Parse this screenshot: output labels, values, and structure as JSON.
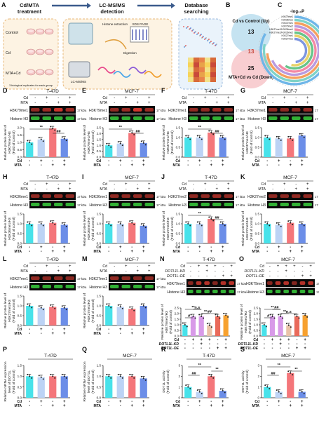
{
  "panelA": {
    "letter": "A",
    "steps": [
      "Cd/MTA\ntreatment",
      "LC-MS/MS\ndetection",
      "Database\nsearching"
    ],
    "groups": [
      "Control",
      "Cd",
      "MTA+Cd"
    ],
    "note": "3 biological replicates for each group",
    "labels": [
      "Histone extraction",
      "SDS PAGE",
      "Digestion",
      "LC-MS/MS"
    ]
  },
  "panelB": {
    "letter": "B",
    "top_label": "Cd vs Control (Up)",
    "top_n": "13",
    "overlap_n": "13",
    "bottom_n": "25",
    "bottom_label": "MTA+Cd vs Cd (Down)",
    "colors": {
      "top": "#bfe0f0",
      "bottom": "#f7c6c9",
      "overlap": "#c9483c"
    }
  },
  "panelC": {
    "letter": "C",
    "axis_label": "-log₁₀P",
    "marks": [
      "H3K79me1",
      "H3K36me1",
      "H3K37me1",
      "H3K79me2",
      "H3K27me2/H3K36me1",
      "H3K27me2/H3K36me2",
      "H3K27me1",
      "H3K27me1"
    ],
    "ring_colors": [
      "#6fb6e8",
      "#7fd3c7",
      "#f5a05f",
      "#b99be0",
      "#f48aa5",
      "#67c48a",
      "#e8d26a",
      "#7d96e0"
    ]
  },
  "cd_label": "Cd",
  "mta_label": "MTA",
  "kda": "17 kDa",
  "blot_panels": [
    {
      "letter": "D",
      "cell": "T-47D",
      "mark": "H3K79me1",
      "ylab": [
        "Relative protein level of",
        "H3K79me1/H3",
        "(Fold of control)"
      ],
      "yticks": [
        "0.0",
        "0.5",
        "1.0",
        "1.5",
        "2.0"
      ],
      "ymax": 2.0,
      "values": [
        1.0,
        1.2,
        1.95,
        1.25
      ],
      "sig": [
        "**",
        "##"
      ]
    },
    {
      "letter": "E",
      "cell": "MCF-7",
      "mark": "H3K79me1",
      "ylab": [
        "Relative protein level of",
        "H3K79me1/H3",
        "(Fold of control)"
      ],
      "yticks": [
        "0.0",
        "0.5",
        "1.0",
        "1.5",
        "2.0",
        "2.5"
      ],
      "ymax": 2.5,
      "values": [
        1.0,
        1.15,
        2.05,
        1.2
      ],
      "sig": [
        "**",
        "##"
      ]
    },
    {
      "letter": "F",
      "cell": "T-47D",
      "mark": "H3K37me1",
      "ylab": [
        "Relative protein level of",
        "H3K37me1/H3",
        "(Fold of control)"
      ],
      "yticks": [
        "0.0",
        "0.5",
        "1.0",
        "1.5"
      ],
      "ymax": 1.5,
      "values": [
        1.0,
        1.0,
        1.25,
        1.0
      ],
      "sig": [
        "**",
        "##"
      ]
    },
    {
      "letter": "G",
      "cell": "MCF-7",
      "mark": "H3K37me1",
      "ylab": [
        "Relative protein level of",
        "H3K37me1/H3",
        "(Fold of control)"
      ],
      "yticks": [
        "0.0",
        "0.5",
        "1.0",
        "1.5"
      ],
      "ymax": 1.5,
      "values": [
        1.0,
        0.95,
        0.95,
        1.1
      ],
      "sig": []
    },
    {
      "letter": "H",
      "cell": "T-47D",
      "mark": "H3K36me1",
      "ylab": [
        "Relative protein level of",
        "H3K36me1/H3",
        "(Fold of control)"
      ],
      "yticks": [
        "0.0",
        "0.5",
        "1.0",
        "1.5"
      ],
      "ymax": 1.5,
      "values": [
        1.0,
        1.0,
        1.05,
        0.95
      ],
      "sig": []
    },
    {
      "letter": "I",
      "cell": "MCF-7",
      "mark": "H3K36me1",
      "ylab": [
        "Relative protein level of",
        "H3K36me1/H3",
        "(Fold of control)"
      ],
      "yticks": [
        "0.0",
        "0.5",
        "1.0",
        "1.5"
      ],
      "ymax": 1.5,
      "values": [
        1.0,
        1.0,
        1.05,
        0.9
      ],
      "sig": []
    },
    {
      "letter": "J",
      "cell": "T-47D",
      "mark": "H3K27me2",
      "ylab": [
        "Relative protein level of",
        "H3K27me2/H3",
        "(Fold of control)"
      ],
      "yticks": [
        "0.0",
        "0.5",
        "1.0",
        "1.5"
      ],
      "ymax": 1.5,
      "values": [
        1.0,
        1.0,
        1.25,
        1.0
      ],
      "sig": [
        "**",
        "##"
      ]
    },
    {
      "letter": "K",
      "cell": "MCF-7",
      "mark": "H3K27me2",
      "ylab": [
        "Relative protein level of",
        "H3K27me2/H3",
        "(Fold of control)"
      ],
      "yticks": [
        "0.0",
        "0.5",
        "1.0",
        "1.5"
      ],
      "ymax": 1.5,
      "values": [
        1.0,
        0.95,
        1.05,
        1.0
      ],
      "sig": []
    },
    {
      "letter": "L",
      "cell": "T-47D",
      "mark": "H3K27me1",
      "ylab": [
        "Relative protein level of",
        "H3K27me1/H3",
        "(Fold of control)"
      ],
      "yticks": [
        "0.0",
        "0.5",
        "1.0",
        "1.5"
      ],
      "ymax": 1.5,
      "values": [
        1.0,
        0.9,
        0.95,
        0.9
      ],
      "sig": []
    },
    {
      "letter": "M",
      "cell": "MCF-7",
      "mark": "H3K27me1",
      "ylab": [
        "Relative protein level of",
        "H3K27me1/H3",
        "(Fold of control)"
      ],
      "yticks": [
        "0.0",
        "0.5",
        "1.0",
        "1.5"
      ],
      "ymax": 1.5,
      "values": [
        1.0,
        0.95,
        0.85,
        1.0
      ],
      "sig": []
    }
  ],
  "loss_panels": [
    {
      "letter": "N",
      "cell": "T-47D",
      "yticks": [
        "0.0",
        "0.5",
        "1.0",
        "1.5",
        "2.0",
        "2.5"
      ],
      "ymax": 2.5,
      "values": [
        1.0,
        1.75,
        1.75,
        0.95,
        1.75,
        1.85
      ],
      "sig": [
        "**",
        "**",
        "#",
        "n.s",
        "##"
      ]
    },
    {
      "letter": "O",
      "cell": "MCF-7",
      "yticks": [
        "0.0",
        "0.5",
        "1.0",
        "1.5",
        "2.0",
        "2.5"
      ],
      "ymax": 2.5,
      "values": [
        1.0,
        1.75,
        1.75,
        0.95,
        1.75,
        1.85
      ],
      "sig": [
        "**",
        "**",
        "#",
        "##",
        "n.s"
      ]
    }
  ],
  "kd_label": "DOTL1L-KD",
  "oe_label": "DOT1L-OE",
  "histone_label": "Histone H3",
  "loss_ylab": [
    "Relative protein level of",
    "H3K79me1/H3",
    "(Fold of control)"
  ],
  "mrna_panels": [
    {
      "letter": "P",
      "cell": "T-47D",
      "yticks": [
        "0.0",
        "0.5",
        "1.0",
        "1.5"
      ],
      "ymax": 1.5,
      "values": [
        1.0,
        0.95,
        1.0,
        1.0
      ]
    },
    {
      "letter": "Q",
      "cell": "MCF-7",
      "yticks": [
        "0.0",
        "0.5",
        "1.0",
        "1.5"
      ],
      "ymax": 1.5,
      "values": [
        1.0,
        1.0,
        1.0,
        0.9
      ]
    }
  ],
  "mrna_ylab": [
    "Relative mRNA expression",
    "level of DOT1L",
    "(Fold of control)"
  ],
  "activity_panels": [
    {
      "letter": "R",
      "cell": "T-47D",
      "yticks": [
        "0",
        "1",
        "2",
        "3"
      ],
      "ymax": 3,
      "values": [
        1.0,
        0.55,
        2.0,
        0.65
      ],
      "sig": [
        "**",
        "**",
        "##"
      ]
    },
    {
      "letter": "S",
      "cell": "MCF-7",
      "yticks": [
        "0",
        "1",
        "2",
        "3"
      ],
      "ymax": 3,
      "values": [
        1.0,
        0.55,
        2.3,
        0.55
      ],
      "sig": [
        "**",
        "**",
        "##"
      ]
    }
  ],
  "activity_ylab": [
    "DOT1L activity",
    "(Fold of control)"
  ],
  "bar_colors": [
    "#47e2ea",
    "#bcd3f5",
    "#f4767a",
    "#6c8ee8"
  ],
  "loss_colors": [
    "#47e2ea",
    "#d89ae8",
    "#d89ae8",
    "#e9c3a8",
    "#e96a5a",
    "#f7a12f"
  ],
  "cd_row4": [
    "-",
    "+",
    "-",
    "+"
  ],
  "mta_row4": [
    "-",
    "-",
    "+",
    "+"
  ],
  "cd_row6": [
    "-",
    "+",
    "+",
    "+",
    "-",
    "+"
  ],
  "kd_row6": [
    "-",
    "-",
    "+",
    "-",
    "-",
    "-"
  ],
  "oe_row6": [
    "-",
    "-",
    "-",
    "-",
    "+",
    "+"
  ]
}
